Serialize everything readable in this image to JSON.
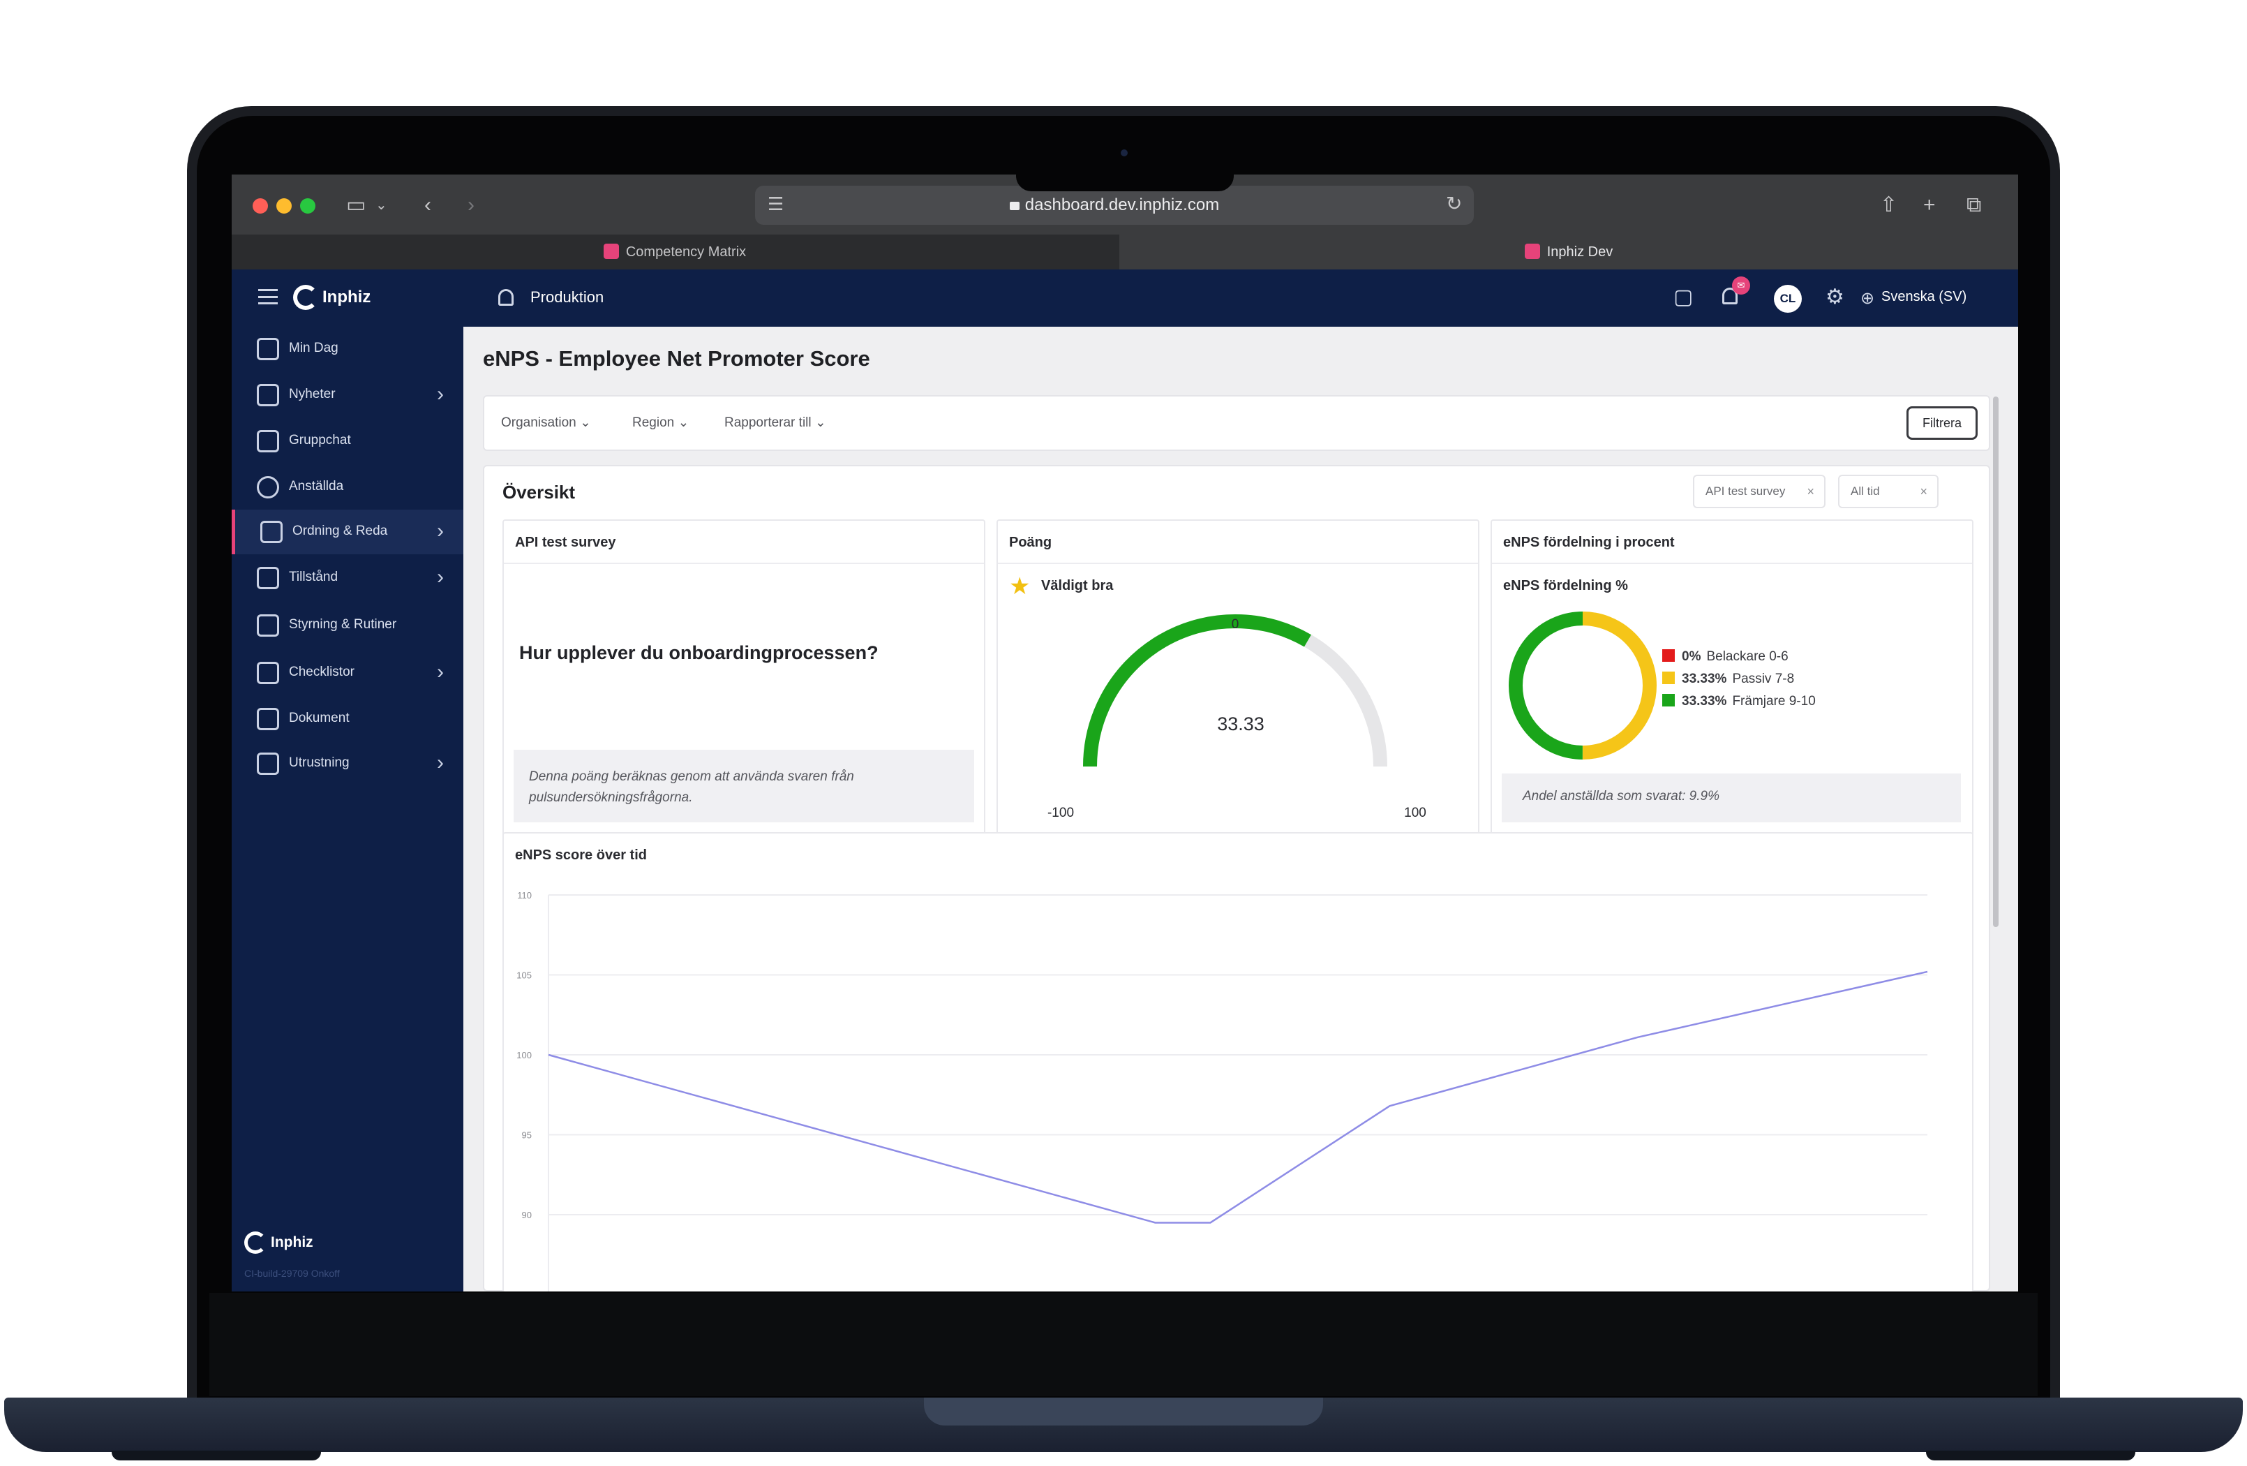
{
  "browser": {
    "url": "dashboard.dev.inphiz.com",
    "tabs": [
      {
        "label": "Competency Matrix",
        "active": false
      },
      {
        "label": "Inphiz Dev",
        "active": true
      }
    ]
  },
  "header": {
    "brand": "Inphiz",
    "environment": "Produktion",
    "avatar_initials": "CL",
    "language": "Svenska (SV)",
    "notification_icon": "bell-icon"
  },
  "sidebar": {
    "items": [
      {
        "label": "Min Dag",
        "icon": "calendar-icon",
        "has_children": false
      },
      {
        "label": "Nyheter",
        "icon": "news-icon",
        "has_children": true
      },
      {
        "label": "Gruppchat",
        "icon": "chat-icon",
        "has_children": false
      },
      {
        "label": "Anställda",
        "icon": "people-icon",
        "has_children": false
      },
      {
        "label": "Ordning & Reda",
        "icon": "grid-icon",
        "has_children": true,
        "active": true
      },
      {
        "label": "Tillstånd",
        "icon": "permit-icon",
        "has_children": true
      },
      {
        "label": "Styrning & Rutiner",
        "icon": "routine-icon",
        "has_children": false
      },
      {
        "label": "Checklistor",
        "icon": "checklist-icon",
        "has_children": true
      },
      {
        "label": "Dokument",
        "icon": "document-icon",
        "has_children": false
      },
      {
        "label": "Utrustning",
        "icon": "tools-icon",
        "has_children": true
      }
    ],
    "footer_brand": "Inphiz",
    "version": "CI-build-29709 Onkoff"
  },
  "page": {
    "title": "eNPS - Employee Net Promoter Score"
  },
  "filters": {
    "dropdowns": [
      "Organisation",
      "Region",
      "Rapporterar till"
    ],
    "filter_button": "Filtrera"
  },
  "overview": {
    "title": "Översikt",
    "chips": [
      "API test survey",
      "All tid"
    ],
    "survey_panel": {
      "title": "API test survey",
      "question": "Hur upplever du onboardingprocessen?",
      "note": "Denna poäng beräknas genom att använda svaren från pulsundersökningsfrågorna."
    },
    "score_panel": {
      "title": "Poäng",
      "rating": "Väldigt bra",
      "score": 33.33,
      "score_label": "33.33",
      "min_label": "-100",
      "mid_label": "0",
      "max_label": "100",
      "color_fill": "#1aa51a",
      "color_track": "#e6e6e8"
    },
    "distribution_panel": {
      "title": "eNPS fördelning i procent",
      "subtitle": "eNPS fördelning %",
      "legend": [
        {
          "pct": "0%",
          "label": "Belackare 0-6",
          "value": 0,
          "color": "#e31b1b"
        },
        {
          "pct": "33.33%",
          "label": "Passiv 7-8",
          "value": 33.33,
          "color": "#f5c518"
        },
        {
          "pct": "33.33%",
          "label": "Främjare 9-10",
          "value": 33.33,
          "color": "#1aa51a"
        }
      ],
      "answered": "Andel anställda som svarat: 9.9%"
    },
    "timeline_panel": {
      "title": "eNPS score över tid"
    }
  },
  "chart_data": {
    "type": "line",
    "title": "eNPS score över tid",
    "xlabel": "",
    "ylabel": "",
    "y_ticks": [
      "110",
      "105",
      "100",
      "95",
      "90"
    ],
    "ylim": [
      90,
      110
    ],
    "series": [
      {
        "values": [
          100,
          89.5,
          89.5,
          96.8,
          101.1,
          105.2
        ]
      }
    ],
    "x_positions": [
      0,
      0.44,
      0.48,
      0.61,
      0.79,
      1.0
    ],
    "line_color": "#8e8ce6",
    "grid": true
  }
}
